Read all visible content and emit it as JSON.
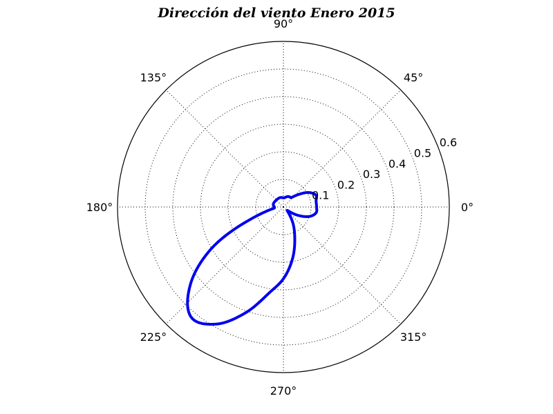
{
  "chart_data": {
    "type": "line",
    "subtype": "polar",
    "title": "Dirección del viento Enero 2015",
    "angle_unit": "degrees",
    "angle_ticks": [
      0,
      45,
      90,
      135,
      180,
      225,
      270,
      315
    ],
    "angle_tick_labels": [
      "0°",
      "45°",
      "90°",
      "135°",
      "180°",
      "225°",
      "270°",
      "315°"
    ],
    "radial_ticks": [
      0.1,
      0.2,
      0.3,
      0.4,
      0.5,
      0.6
    ],
    "radial_tick_labels": [
      "0.1",
      "0.2",
      "0.3",
      "0.4",
      "0.5",
      "0.6"
    ],
    "rlim": [
      0,
      0.6
    ],
    "grid": true,
    "series": [
      {
        "color": "#0000ee",
        "theta": [
          0,
          10,
          20,
          30,
          40,
          50,
          60,
          70,
          80,
          90,
          100,
          110,
          120,
          130,
          140,
          150,
          160,
          170,
          180,
          190,
          200,
          210,
          220,
          230,
          240,
          250,
          260,
          270,
          280,
          290,
          300,
          310,
          320,
          330,
          340,
          350,
          360
        ],
        "r": [
          0.12,
          0.12,
          0.125,
          0.105,
          0.07,
          0.045,
          0.043,
          0.04,
          0.035,
          0.033,
          0.035,
          0.036,
          0.036,
          0.036,
          0.036,
          0.037,
          0.038,
          0.037,
          0.033,
          0.042,
          0.12,
          0.3,
          0.44,
          0.52,
          0.49,
          0.41,
          0.32,
          0.26,
          0.19,
          0.12,
          0.07,
          0.03,
          0.02,
          0.06,
          0.1,
          0.12,
          0.12
        ]
      }
    ]
  }
}
